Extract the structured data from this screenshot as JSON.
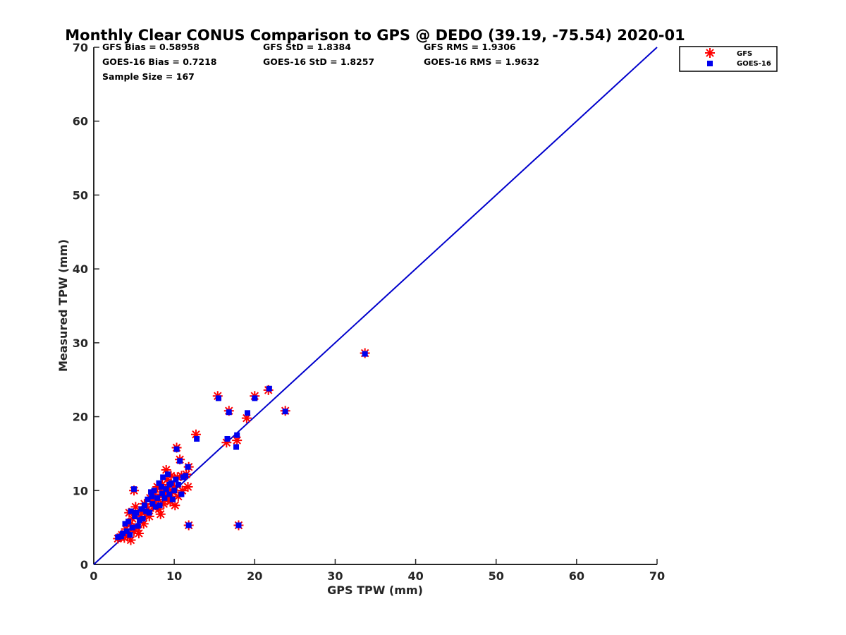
{
  "chart_data": {
    "type": "scatter",
    "title": "Monthly Clear CONUS Comparison to GPS @ DEDO (39.19, -75.54) 2020-01",
    "xlabel": "GPS TPW (mm)",
    "ylabel": "Measured TPW (mm)",
    "xlim": [
      0,
      70
    ],
    "ylim": [
      0,
      70
    ],
    "xticks": [
      "0",
      "10",
      "20",
      "30",
      "40",
      "50",
      "60",
      "70"
    ],
    "yticks": [
      "0",
      "10",
      "20",
      "30",
      "40",
      "50",
      "60",
      "70"
    ],
    "grid": false,
    "legend_position": "top-right",
    "stats": [
      [
        "GFS Bias = 0.58958",
        "GFS StD = 1.8384",
        "GFS RMS = 1.9306"
      ],
      [
        "GOES-16 Bias = 0.7218",
        "GOES-16 StD = 1.8257",
        "GOES-16 RMS = 1.9632"
      ],
      [
        "Sample Size = 167"
      ]
    ],
    "reference_line": {
      "x": [
        0,
        70
      ],
      "y": [
        0,
        70
      ],
      "color": "#0000cc"
    },
    "series": [
      {
        "name": "GFS",
        "marker": "asterisk",
        "color": "#ff0000",
        "points": [
          [
            3.0,
            3.5
          ],
          [
            3.3,
            3.7
          ],
          [
            3.5,
            4.0
          ],
          [
            3.8,
            3.6
          ],
          [
            4.0,
            4.8
          ],
          [
            4.2,
            3.9
          ],
          [
            4.4,
            7.0
          ],
          [
            4.5,
            5.5
          ],
          [
            4.6,
            3.3
          ],
          [
            4.8,
            6.2
          ],
          [
            5.0,
            4.5
          ],
          [
            5.0,
            10.0
          ],
          [
            5.2,
            7.8
          ],
          [
            5.4,
            5.0
          ],
          [
            5.6,
            4.2
          ],
          [
            5.8,
            6.5
          ],
          [
            6.0,
            7.0
          ],
          [
            6.2,
            5.5
          ],
          [
            6.3,
            8.2
          ],
          [
            6.5,
            6.8
          ],
          [
            6.7,
            7.5
          ],
          [
            6.9,
            6.5
          ],
          [
            7.0,
            9.0
          ],
          [
            7.2,
            8.5
          ],
          [
            7.4,
            7.8
          ],
          [
            7.5,
            9.5
          ],
          [
            7.7,
            8.0
          ],
          [
            7.9,
            10.5
          ],
          [
            8.0,
            8.8
          ],
          [
            8.1,
            7.5
          ],
          [
            8.3,
            6.8
          ],
          [
            8.4,
            9.8
          ],
          [
            8.5,
            10.8
          ],
          [
            8.7,
            8.2
          ],
          [
            8.8,
            9.5
          ],
          [
            9.0,
            12.8
          ],
          [
            9.1,
            11.5
          ],
          [
            9.3,
            10.2
          ],
          [
            9.5,
            8.5
          ],
          [
            9.6,
            12.0
          ],
          [
            9.8,
            9.8
          ],
          [
            10.0,
            10.5
          ],
          [
            10.1,
            8.0
          ],
          [
            10.3,
            15.8
          ],
          [
            10.4,
            11.8
          ],
          [
            10.5,
            9.2
          ],
          [
            10.7,
            14.2
          ],
          [
            10.9,
            12.0
          ],
          [
            11.0,
            10.0
          ],
          [
            11.5,
            12.2
          ],
          [
            11.7,
            10.5
          ],
          [
            11.8,
            13.2
          ],
          [
            11.8,
            5.3
          ],
          [
            12.7,
            17.6
          ],
          [
            15.4,
            22.8
          ],
          [
            16.5,
            16.5
          ],
          [
            16.8,
            20.8
          ],
          [
            17.8,
            16.8
          ],
          [
            18.0,
            5.3
          ],
          [
            19.0,
            19.8
          ],
          [
            20.0,
            22.8
          ],
          [
            21.7,
            23.6
          ],
          [
            23.8,
            20.8
          ],
          [
            33.7,
            28.6
          ],
          [
            9.2,
            9.0
          ],
          [
            8.9,
            10.0
          ],
          [
            7.6,
            8.6
          ]
        ]
      },
      {
        "name": "GOES-16",
        "marker": "square",
        "color": "#0000ee",
        "points": [
          [
            3.0,
            3.7
          ],
          [
            3.4,
            3.8
          ],
          [
            3.6,
            4.2
          ],
          [
            3.9,
            5.5
          ],
          [
            4.1,
            4.5
          ],
          [
            4.3,
            5.8
          ],
          [
            4.5,
            4.0
          ],
          [
            4.6,
            7.2
          ],
          [
            4.8,
            5.0
          ],
          [
            5.0,
            10.2
          ],
          [
            5.1,
            6.5
          ],
          [
            5.3,
            7.0
          ],
          [
            5.5,
            5.2
          ],
          [
            5.7,
            6.0
          ],
          [
            5.9,
            7.5
          ],
          [
            6.1,
            6.2
          ],
          [
            6.3,
            8.0
          ],
          [
            6.5,
            7.2
          ],
          [
            6.7,
            8.8
          ],
          [
            6.9,
            7.0
          ],
          [
            7.1,
            9.8
          ],
          [
            7.3,
            8.2
          ],
          [
            7.5,
            10.0
          ],
          [
            7.7,
            7.8
          ],
          [
            7.9,
            9.0
          ],
          [
            8.1,
            11.0
          ],
          [
            8.2,
            8.0
          ],
          [
            8.4,
            10.5
          ],
          [
            8.6,
            11.8
          ],
          [
            8.8,
            9.0
          ],
          [
            9.0,
            10.2
          ],
          [
            9.2,
            12.2
          ],
          [
            9.4,
            9.5
          ],
          [
            9.6,
            11.0
          ],
          [
            9.8,
            8.8
          ],
          [
            10.0,
            10.0
          ],
          [
            10.2,
            11.5
          ],
          [
            10.3,
            15.6
          ],
          [
            10.5,
            10.8
          ],
          [
            10.7,
            14.0
          ],
          [
            10.9,
            9.5
          ],
          [
            11.1,
            11.8
          ],
          [
            11.4,
            12.0
          ],
          [
            11.7,
            13.2
          ],
          [
            11.8,
            5.3
          ],
          [
            12.8,
            17.0
          ],
          [
            15.5,
            22.5
          ],
          [
            16.6,
            17.0
          ],
          [
            16.8,
            20.6
          ],
          [
            17.7,
            15.9
          ],
          [
            17.8,
            17.5
          ],
          [
            18.0,
            5.3
          ],
          [
            19.1,
            20.5
          ],
          [
            20.0,
            22.5
          ],
          [
            21.8,
            23.8
          ],
          [
            23.8,
            20.7
          ],
          [
            33.7,
            28.5
          ],
          [
            8.5,
            9.6
          ],
          [
            9.4,
            10.8
          ],
          [
            7.2,
            9.2
          ]
        ]
      }
    ]
  }
}
